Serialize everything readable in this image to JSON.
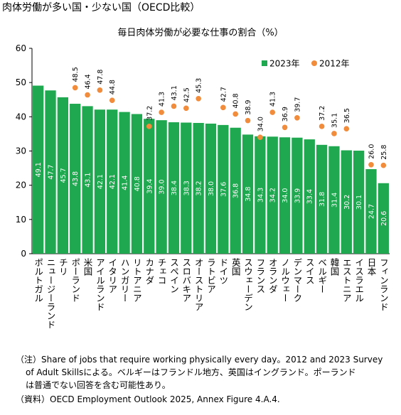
{
  "page_title": "肉体労働が多い国・少ない国（OECD比較）",
  "chart_data": {
    "type": "bar",
    "title": "毎日肉体労働が必要な仕事の割合（%）",
    "categories": [
      "ポルトガル",
      "ニュージーランド",
      "チリ",
      "ポーランド",
      "米国",
      "アイルランド",
      "イタリア",
      "ハンガリー",
      "リトアニア",
      "カナダ",
      "チェコ",
      "スペイン",
      "スロバキア",
      "オーストリア",
      "ラトビア",
      "ドイツ",
      "英国",
      "スウェーデン",
      "フランス",
      "オランダ",
      "ノルウェー",
      "デンマーク",
      "スイス",
      "ベルギー",
      "韓国",
      "エストニア",
      "イスラエル",
      "日本",
      "フィンランド"
    ],
    "series": [
      {
        "name": "2023年",
        "color": "#1fa84f",
        "kind": "bar",
        "values": [
          49.1,
          47.7,
          45.7,
          43.8,
          43.1,
          42.1,
          42.1,
          41.4,
          40.8,
          39.4,
          39.0,
          38.4,
          38.3,
          38.2,
          38.0,
          37.6,
          36.8,
          34.8,
          34.3,
          34.2,
          34.0,
          33.9,
          33.4,
          31.8,
          31.4,
          30.2,
          30.1,
          24.7,
          20.6
        ],
        "value_labels": [
          "49.1",
          "47.7",
          "45.7",
          "43.8",
          "43.1",
          "42.1",
          "42.1",
          "41.4",
          "40.8",
          "39.4",
          "39.0",
          "38.4",
          "38.3",
          "38.2",
          "38.0",
          "37.6",
          "36.8",
          "34.8",
          "34.3",
          "34.2",
          "34.0",
          "33.9",
          "33.4",
          "31.8",
          "31.4",
          "30.2",
          "30.1",
          "24.7",
          "20.6"
        ]
      },
      {
        "name": "2012年",
        "color": "#f08c3c",
        "kind": "dot",
        "values": [
          null,
          null,
          null,
          48.5,
          46.4,
          47.8,
          44.8,
          null,
          null,
          37.2,
          41.3,
          43.1,
          42.5,
          45.3,
          null,
          42.7,
          40.8,
          38.9,
          34.0,
          41.3,
          36.9,
          39.7,
          null,
          37.2,
          35.1,
          36.5,
          null,
          26.0,
          25.8
        ],
        "value_labels": [
          null,
          null,
          null,
          "48.5",
          "46.4",
          "47.8",
          "44.8",
          null,
          null,
          "37.2",
          "41.3",
          "43.1",
          "42.5",
          "45.3",
          null,
          "42.7",
          "40.8",
          "38.9",
          "34.0",
          "41.3",
          "36.9",
          "39.7",
          null,
          "37.2",
          "35.1",
          "36.5",
          null,
          "26.0",
          "25.8"
        ]
      }
    ],
    "ylim": [
      0,
      60
    ],
    "yticks": [
      0,
      10,
      20,
      30,
      40,
      50,
      60
    ],
    "grid": false
  },
  "notes": [
    "（注）Share of jobs that require working physically every day。2012 and 2023 Survey",
    "of Adult Skillsによる。ベルギーはフランドル地方、英国はイングランド。ポーランド",
    "は普通でない回答を含む可能性あり。",
    "（資料）OECD Employment Outlook 2025, Annex Figure 4.A.4."
  ]
}
